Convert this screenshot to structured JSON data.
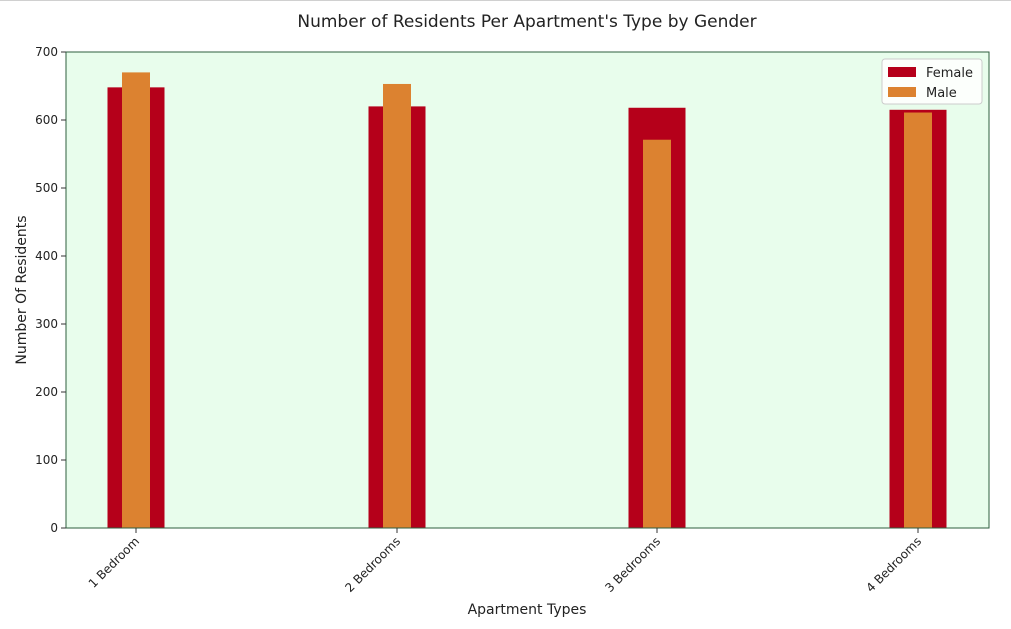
{
  "chart_data": {
    "type": "bar",
    "title": "Number of Residents Per Apartment's Type by Gender",
    "xlabel": "Apartment Types",
    "ylabel": "Number Of Residents",
    "categories": [
      "1 Bedroom",
      "2 Bedrooms",
      "3 Bedrooms",
      "4 Bedrooms"
    ],
    "series": [
      {
        "name": "Female",
        "values": [
          648,
          620,
          618,
          615
        ],
        "color": "#b5001a"
      },
      {
        "name": "Male",
        "values": [
          670,
          653,
          571,
          611
        ],
        "color": "#dc8230"
      }
    ],
    "ylim": [
      0,
      700
    ],
    "yticks": [
      0,
      100,
      200,
      300,
      400,
      500,
      600,
      700
    ],
    "grid": false,
    "legend_position": "top-right",
    "plot_background": "#e8fdec",
    "spine_color": "#2e5e3e"
  }
}
